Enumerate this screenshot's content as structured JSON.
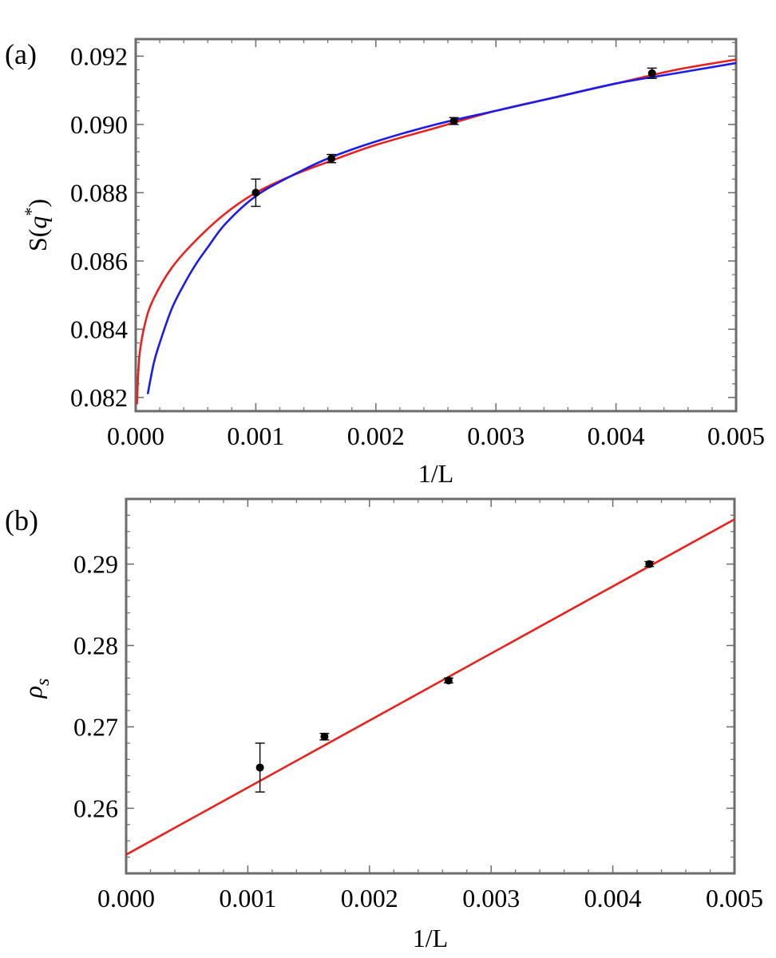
{
  "chart_data": [
    {
      "panel": "(a)",
      "type": "scatter",
      "xlabel": "1/L",
      "ylabel": {
        "base": "S(",
        "var": "q",
        "sup": "*",
        "close": ")"
      },
      "xlim": [
        0.0,
        0.005
      ],
      "ylim": [
        0.0816,
        0.0925
      ],
      "xticks": [
        "0.000",
        "0.001",
        "0.002",
        "0.003",
        "0.004",
        "0.005"
      ],
      "yticks": [
        "0.082",
        "0.084",
        "0.086",
        "0.088",
        "0.090",
        "0.092"
      ],
      "points": [
        {
          "x": 0.001,
          "y": 0.088,
          "err": 0.0004
        },
        {
          "x": 0.00163,
          "y": 0.089,
          "err": 0.00012
        },
        {
          "x": 0.00265,
          "y": 0.0901,
          "err": 0.0001
        },
        {
          "x": 0.0043,
          "y": 0.0915,
          "err": 0.00015
        }
      ],
      "fits": [
        {
          "color": "#e8211c",
          "x": [
            1e-05,
            3e-05,
            8e-05,
            0.00015,
            0.0003,
            0.0005,
            0.00075,
            0.001,
            0.0013,
            0.0016,
            0.002,
            0.0025,
            0.003,
            0.0035,
            0.004,
            0.0045,
            0.005
          ],
          "y": [
            0.0818,
            0.0832,
            0.0842,
            0.0849,
            0.0858,
            0.0866,
            0.0874,
            0.088,
            0.0885,
            0.0889,
            0.0894,
            0.0899,
            0.0904,
            0.0908,
            0.0912,
            0.0916,
            0.0919
          ]
        },
        {
          "color": "#1c1ce8",
          "x": [
            0.0001,
            0.00015,
            0.0002,
            0.0003,
            0.0004,
            0.0005,
            0.0006,
            0.00075,
            0.001,
            0.0013,
            0.0016,
            0.002,
            0.0025,
            0.003,
            0.0035,
            0.004,
            0.0045,
            0.005
          ],
          "y": [
            0.0821,
            0.083,
            0.0836,
            0.0846,
            0.0853,
            0.0859,
            0.0864,
            0.0871,
            0.0879,
            0.0885,
            0.089,
            0.0895,
            0.09,
            0.0904,
            0.0908,
            0.0912,
            0.0915,
            0.0918
          ]
        }
      ]
    },
    {
      "panel": "(b)",
      "type": "scatter",
      "xlabel": "1/L",
      "ylabel": {
        "var": "ρ",
        "sub": "s"
      },
      "xlim": [
        0.0,
        0.005
      ],
      "ylim": [
        0.252,
        0.298
      ],
      "xticks": [
        "0.000",
        "0.001",
        "0.002",
        "0.003",
        "0.004",
        "0.005"
      ],
      "yticks": [
        "0.26",
        "0.27",
        "0.28",
        "0.29"
      ],
      "points": [
        {
          "x": 0.0011,
          "y": 0.265,
          "err": 0.003
        },
        {
          "x": 0.00163,
          "y": 0.2688,
          "err": 0.0004
        },
        {
          "x": 0.00265,
          "y": 0.2757,
          "err": 0.0003
        },
        {
          "x": 0.0043,
          "y": 0.29,
          "err": 0.0003
        }
      ],
      "fits": [
        {
          "color": "#e8211c",
          "x": [
            0.0,
            0.005
          ],
          "y": [
            0.2543,
            0.2955
          ]
        }
      ]
    }
  ]
}
